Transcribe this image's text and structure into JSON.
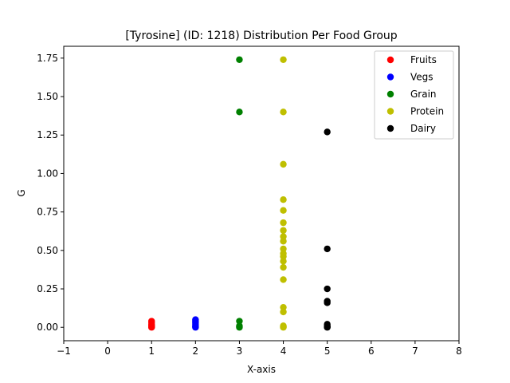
{
  "chart_data": {
    "type": "scatter",
    "title": "[Tyrosine] (ID: 1218) Distribution Per Food Group",
    "xlabel": "X-axis",
    "ylabel": "G",
    "xlim": [
      -1,
      8
    ],
    "ylim": [
      -0.087,
      1.827
    ],
    "xticks": [
      -1,
      0,
      1,
      2,
      3,
      4,
      5,
      6,
      7,
      8
    ],
    "yticks": [
      0.0,
      0.25,
      0.5,
      0.75,
      1.0,
      1.25,
      1.5,
      1.75
    ],
    "ytick_labels": [
      "0.00",
      "0.25",
      "0.50",
      "0.75",
      "1.00",
      "1.25",
      "1.50",
      "1.75"
    ],
    "grid": false,
    "legend_position": "top-right",
    "series": [
      {
        "name": "Fruits",
        "color": "#ff0000",
        "x": [
          1,
          1,
          1,
          1,
          1,
          1,
          1,
          1
        ],
        "y": [
          0.04,
          0.03,
          0.02,
          0.015,
          0.01,
          0.005,
          0.002,
          0.0
        ]
      },
      {
        "name": "Vegs",
        "color": "#0000ff",
        "x": [
          2,
          2,
          2,
          2,
          2,
          2,
          2
        ],
        "y": [
          0.05,
          0.04,
          0.03,
          0.02,
          0.01,
          0.005,
          0.0
        ]
      },
      {
        "name": "Grain",
        "color": "#008000",
        "x": [
          3,
          3,
          3,
          3,
          3,
          3
        ],
        "y": [
          1.74,
          1.4,
          0.04,
          0.01,
          0.005,
          0.0
        ]
      },
      {
        "name": "Protein",
        "color": "#bfbf00",
        "x": [
          4,
          4,
          4,
          4,
          4,
          4,
          4,
          4,
          4,
          4,
          4,
          4,
          4,
          4,
          4,
          4,
          4,
          4,
          4,
          4,
          4
        ],
        "y": [
          1.74,
          1.4,
          1.06,
          0.83,
          0.76,
          0.68,
          0.63,
          0.59,
          0.56,
          0.51,
          0.48,
          0.46,
          0.43,
          0.39,
          0.31,
          0.13,
          0.1,
          0.01,
          0.005,
          0.002,
          0.0
        ]
      },
      {
        "name": "Dairy",
        "color": "#000000",
        "x": [
          5,
          5,
          5,
          5,
          5,
          5,
          5,
          5,
          5,
          5
        ],
        "y": [
          1.27,
          0.51,
          0.25,
          0.17,
          0.16,
          0.02,
          0.01,
          0.005,
          0.002,
          0.0
        ]
      }
    ]
  }
}
